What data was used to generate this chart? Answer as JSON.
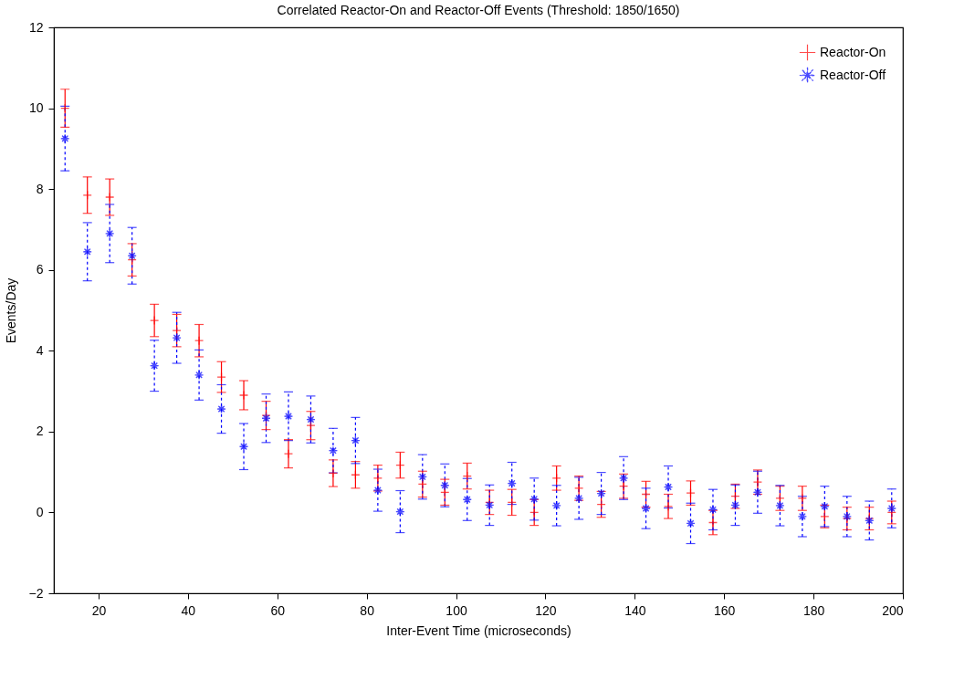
{
  "chart_data": {
    "type": "scatter",
    "title": "Correlated Reactor-On and Reactor-Off Events (Threshold: 1850/1650)",
    "xlabel": "Inter-Event Time (microseconds)",
    "ylabel": "Events/Day",
    "x": [
      12.5,
      17.5,
      22.5,
      27.5,
      32.5,
      37.5,
      42.5,
      47.5,
      52.5,
      57.5,
      62.5,
      67.5,
      72.5,
      77.5,
      82.5,
      87.5,
      92.5,
      97.5,
      102.5,
      107.5,
      112.5,
      117.5,
      122.5,
      127.5,
      132.5,
      137.5,
      142.5,
      147.5,
      152.5,
      157.5,
      162.5,
      167.5,
      172.5,
      177.5,
      182.5,
      187.5,
      192.5,
      197.5
    ],
    "series": [
      {
        "name": "Reactor-On",
        "color": "#ff0000",
        "marker": "cross",
        "line_style": "solid",
        "values": [
          10.0,
          7.85,
          7.8,
          6.25,
          4.75,
          4.5,
          4.25,
          3.35,
          2.9,
          2.4,
          1.45,
          2.15,
          0.97,
          0.93,
          0.85,
          1.17,
          0.7,
          0.5,
          0.9,
          0.25,
          0.25,
          0.0,
          0.85,
          0.6,
          0.2,
          0.65,
          0.45,
          0.15,
          0.48,
          -0.25,
          0.4,
          0.75,
          0.35,
          0.35,
          -0.1,
          -0.15,
          -0.15,
          0.0
        ],
        "errors": [
          0.47,
          0.45,
          0.45,
          0.4,
          0.4,
          0.4,
          0.4,
          0.38,
          0.36,
          0.35,
          0.35,
          0.35,
          0.33,
          0.33,
          0.32,
          0.32,
          0.32,
          0.32,
          0.32,
          0.3,
          0.32,
          0.32,
          0.3,
          0.3,
          0.32,
          0.3,
          0.32,
          0.3,
          0.3,
          0.3,
          0.3,
          0.3,
          0.3,
          0.3,
          0.28,
          0.28,
          0.28,
          0.28
        ]
      },
      {
        "name": "Reactor-Off",
        "color": "#0000ff",
        "marker": "star",
        "line_style": "dashed",
        "values": [
          9.25,
          6.45,
          6.9,
          6.35,
          3.63,
          4.32,
          3.4,
          2.56,
          1.63,
          2.33,
          2.38,
          2.3,
          1.53,
          1.78,
          0.55,
          0.02,
          0.88,
          0.67,
          0.32,
          0.18,
          0.72,
          0.33,
          0.17,
          0.35,
          0.47,
          0.85,
          0.1,
          0.63,
          -0.27,
          0.07,
          0.18,
          0.5,
          0.17,
          -0.1,
          0.15,
          -0.1,
          -0.2,
          0.1
        ],
        "errors": [
          0.8,
          0.72,
          0.72,
          0.7,
          0.63,
          0.63,
          0.62,
          0.6,
          0.57,
          0.6,
          0.6,
          0.58,
          0.55,
          0.57,
          0.52,
          0.52,
          0.55,
          0.53,
          0.52,
          0.5,
          0.52,
          0.52,
          0.5,
          0.52,
          0.52,
          0.53,
          0.5,
          0.52,
          0.5,
          0.5,
          0.5,
          0.52,
          0.5,
          0.5,
          0.5,
          0.5,
          0.48,
          0.48
        ]
      }
    ],
    "xlim": [
      10,
      200
    ],
    "xticks": [
      20,
      40,
      60,
      80,
      100,
      120,
      140,
      160,
      180,
      200
    ],
    "ylim": [
      -2,
      12
    ],
    "yticks": [
      -2,
      0,
      2,
      4,
      6,
      8,
      10,
      12
    ],
    "grid": false,
    "legend": "top right"
  }
}
